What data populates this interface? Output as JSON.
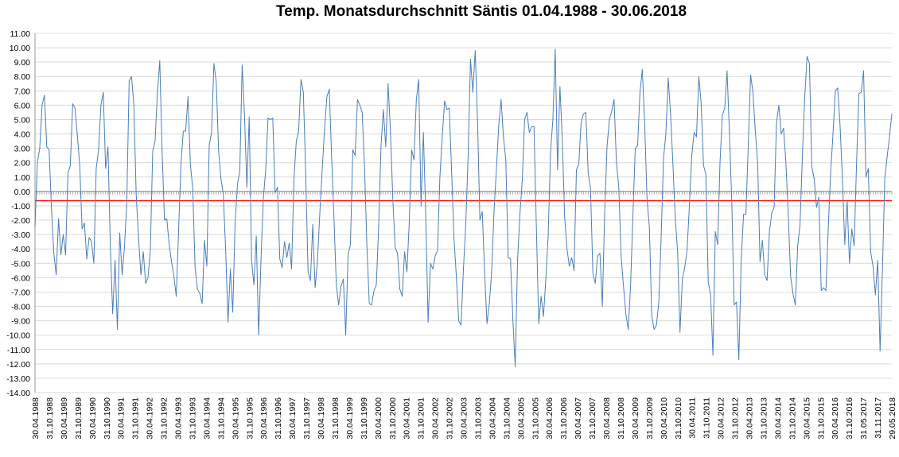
{
  "chart_data": {
    "type": "line",
    "title": "Temp. Monatsdurchschnitt Säntis 01.04.1988  - 30.06.2018",
    "xlabel": "",
    "ylabel": "",
    "ylim": [
      -14,
      11
    ],
    "ytick_step": 1,
    "grid": "horizontal",
    "legend": "none",
    "x_tick_labels": [
      "30.04.1988",
      "31.10.1988",
      "30.04.1989",
      "31.10.1989",
      "30.04.1990",
      "31.10.1990",
      "30.04.1991",
      "31.10.1991",
      "30.04.1992",
      "31.10.1992",
      "30.04.1993",
      "31.10.1993",
      "30.04.1994",
      "31.10.1994",
      "30.04.1995",
      "31.10.1995",
      "30.04.1996",
      "31.10.1996",
      "30.04.1997",
      "31.10.1997",
      "30.04.1998",
      "31.10.1998",
      "30.04.1999",
      "31.10.1999",
      "30.04.2000",
      "31.10.2000",
      "30.04.2001",
      "31.10.2001",
      "30.04.2002",
      "31.10.2002",
      "30.04.2003",
      "31.10.2003",
      "30.04.2004",
      "31.10.2004",
      "30.04.2005",
      "31.10.2005",
      "30.04.2006",
      "31.10.2006",
      "30.04.2007",
      "31.10.2007",
      "30.04.2008",
      "31.10.2008",
      "30.04.2009",
      "31.10.2009",
      "30.04.2010",
      "31.10.2010",
      "30.04.2011",
      "31.10.2011",
      "30.04.2012",
      "31.10.2012",
      "30.04.2013",
      "31.10.2013",
      "30.04.2014",
      "31.10.2014",
      "30.04.2015",
      "31.10.2015",
      "30.04.2016",
      "31.10.2016",
      "31.05.2017",
      "31.11.2017",
      "29.05.2018"
    ],
    "series": [
      {
        "name": "",
        "color": "#4a7ebb",
        "values": [
          -2.5,
          2,
          3,
          6,
          6.7,
          3.1,
          2.9,
          -1.2,
          -4.3,
          -5.8,
          -1.9,
          -4.4,
          -3,
          -4.4,
          1.3,
          1.8,
          6.1,
          5.8,
          3.9,
          1.8,
          -2.6,
          -2.2,
          -4.7,
          -3.2,
          -3.5,
          -5,
          1.6,
          2.9,
          6,
          6.9,
          1.6,
          3.1,
          -3.8,
          -8.5,
          -4.8,
          -9.6,
          -2.9,
          -5.8,
          -3.9,
          -0.7,
          7.7,
          8,
          6,
          -0.3,
          -3.3,
          -5.8,
          -4.2,
          -6.4,
          -6,
          -4.1,
          2.8,
          3.5,
          6.9,
          9.1,
          2.8,
          -2,
          -1.9,
          -3.7,
          -4.9,
          -5.9,
          -7.3,
          -2.7,
          1.9,
          4.2,
          4.2,
          6.6,
          1.9,
          0.2,
          -5.3,
          -6.8,
          -7.1,
          -7.8,
          -3.4,
          -5.2,
          3.2,
          4.1,
          8.9,
          7.6,
          2.8,
          0.9,
          -0.2,
          -4.1,
          -9.1,
          -5.4,
          -8.4,
          -2.2,
          0.5,
          1.4,
          8.8,
          5.3,
          0.3,
          5.2,
          -4.8,
          -6.5,
          -3.1,
          -10,
          -4.8,
          -0.5,
          1.5,
          5.1,
          5,
          5.1,
          -0.1,
          0.3,
          -4.7,
          -5.3,
          -3.5,
          -4.6,
          -3.6,
          -5.4,
          0.9,
          3.5,
          4.2,
          7.8,
          6.9,
          1.2,
          -5.6,
          -6.2,
          -2.3,
          -6.7,
          -4.8,
          -1.5,
          1.5,
          4.3,
          6.6,
          7.1,
          2.4,
          -1.8,
          -6.5,
          -7.9,
          -6.6,
          -6.1,
          -10,
          -4.4,
          -3.7,
          2.9,
          2.5,
          6.4,
          6,
          5.5,
          1.6,
          -3.8,
          -7.8,
          -7.9,
          -6.9,
          -6.5,
          -2.4,
          3.2,
          5.7,
          3.1,
          7.5,
          4.2,
          -0.5,
          -3.9,
          -4.3,
          -6.8,
          -7.3,
          -4.2,
          -5.6,
          -2.1,
          2.9,
          2.2,
          6.4,
          7.8,
          -1,
          4.1,
          -1.7,
          -9.1,
          -5,
          -5.4,
          -4.5,
          -4.1,
          1,
          3.8,
          6.3,
          5.7,
          5.8,
          1.3,
          -3.3,
          -5.9,
          -9,
          -9.3,
          -5.4,
          -2.3,
          2.5,
          9.2,
          6.9,
          9.8,
          4.9,
          -2,
          -1.4,
          -5.6,
          -9.2,
          -7.8,
          -5.6,
          -1.4,
          1.5,
          4.6,
          6.4,
          3.8,
          2.2,
          -4.6,
          -4.7,
          -8.9,
          -12.2,
          -4.8,
          -1.6,
          0.8,
          5,
          5.5,
          4.1,
          4.5,
          4.5,
          -2.6,
          -9.2,
          -7.3,
          -8.7,
          -6.1,
          -3.1,
          2.7,
          5,
          9.9,
          1.5,
          7.3,
          3.6,
          -1.8,
          -4,
          -5.2,
          -4.6,
          -5.5,
          1.5,
          1.9,
          4.8,
          5.4,
          5.5,
          1.3,
          0.2,
          -5.7,
          -6.4,
          -4.5,
          -4.3,
          -8,
          -1.5,
          3.1,
          5,
          5.6,
          6.4,
          2,
          0.3,
          -4.5,
          -6.6,
          -8.5,
          -9.6,
          -6.6,
          -1.7,
          3,
          3.2,
          6.9,
          8.5,
          4.7,
          -0.5,
          -2.5,
          -8.6,
          -9.6,
          -9.3,
          -7.7,
          -3.2,
          2.3,
          4,
          7.9,
          5.4,
          1.9,
          -1.9,
          -4.2,
          -9.8,
          -6.1,
          -5.3,
          -4.1,
          -1,
          2.5,
          4.1,
          3.8,
          8,
          6.1,
          1.8,
          1.2,
          -6.3,
          -7.2,
          -11.4,
          -2.8,
          -3.7,
          2,
          5.3,
          5.8,
          8.4,
          4.1,
          -0.7,
          -7.9,
          -7.7,
          -11.7,
          -4.8,
          -1.6,
          -1.6,
          3.2,
          8.1,
          6.9,
          4.2,
          2,
          -4.9,
          -3.4,
          -5.8,
          -6.2,
          -2.8,
          -1.5,
          -1.1,
          4.8,
          6,
          4,
          4.4,
          2,
          -1.6,
          -5.9,
          -7.1,
          -7.9,
          -3.8,
          -2.3,
          2.5,
          6.6,
          9.4,
          8.9,
          1.7,
          0.9,
          -1.1,
          -0.4,
          -6.9,
          -6.7,
          -6.9,
          -2.5,
          1.3,
          4,
          7,
          7.2,
          4.6,
          0.9,
          -3.7,
          -0.6,
          -5,
          -2.6,
          -3.8,
          1.9,
          6.8,
          6.9,
          8.4,
          1,
          1.6,
          -4.2,
          -5.2,
          -7.2,
          -4.8,
          -11.1,
          -5.5,
          0.9,
          2.4,
          3.8,
          5.4
        ]
      }
    ],
    "reference_lines": [
      {
        "name": "",
        "color": "#ff0000",
        "y": -0.65
      }
    ]
  }
}
